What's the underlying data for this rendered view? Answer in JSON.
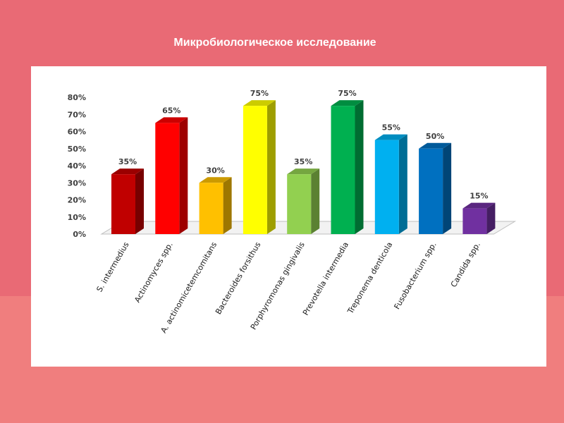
{
  "slide": {
    "title": "Микробиологическое исследование"
  },
  "chart_data": {
    "type": "bar",
    "title": "",
    "xlabel": "",
    "ylabel": "",
    "ylim": [
      0,
      80
    ],
    "y_ticks": [
      "0%",
      "10%",
      "20%",
      "30%",
      "40%",
      "50%",
      "60%",
      "70%",
      "80%"
    ],
    "grid": false,
    "legend": "none",
    "categories": [
      "S. intermedius",
      "Actinomyces spp.",
      "A. actinomicetemcomitans",
      "Bacteroides forsithus",
      "Porphyromonas gingivalis",
      "Prevotella intermedia",
      "Treponema denticola",
      "Fusobacterium spp.",
      "Candida spp."
    ],
    "values": [
      35,
      65,
      30,
      75,
      35,
      75,
      55,
      50,
      15
    ],
    "value_labels": [
      "35%",
      "65%",
      "30%",
      "75%",
      "35%",
      "75%",
      "55%",
      "50%",
      "15%"
    ],
    "colors": [
      "#c00000",
      "#ff0000",
      "#ffc000",
      "#ffff00",
      "#92d050",
      "#00b050",
      "#00b0f0",
      "#0070c0",
      "#7030a0"
    ]
  },
  "colors": {
    "slide_background_top": "#e96a75",
    "slide_background_bottom": "#f07e7e",
    "panel_background": "#ffffff"
  }
}
